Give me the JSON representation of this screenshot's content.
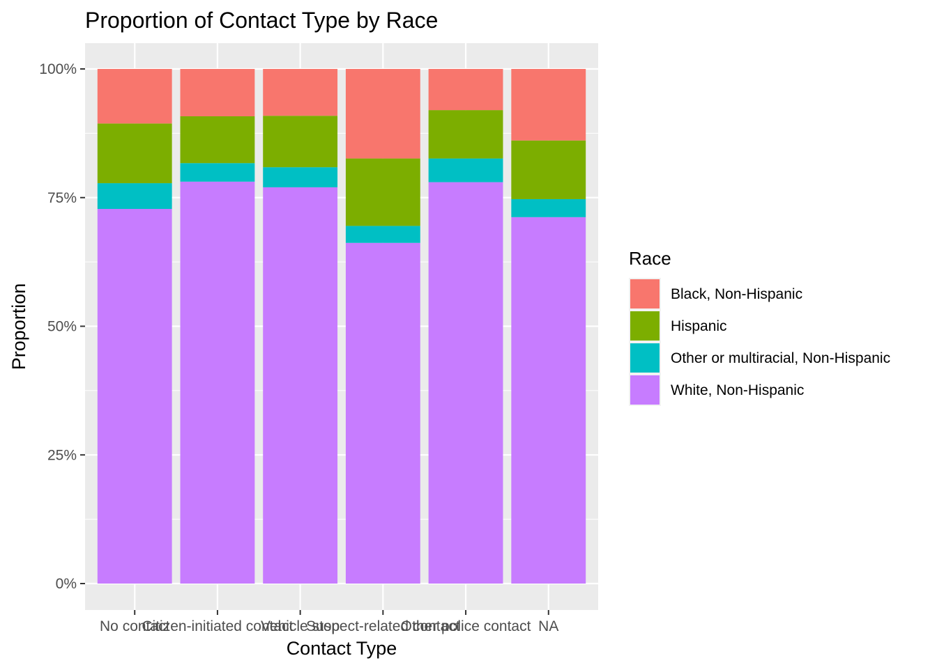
{
  "chart_data": {
    "type": "bar",
    "stacked": true,
    "normalized": true,
    "title": "Proportion of Contact Type by Race",
    "xlabel": "Contact Type",
    "ylabel": "Proportion",
    "ylim": [
      0,
      1
    ],
    "y_ticks": [
      0,
      0.25,
      0.5,
      0.75,
      1
    ],
    "y_tick_labels": [
      "0%",
      "25%",
      "50%",
      "75%",
      "100%"
    ],
    "grid": true,
    "categories": [
      "No contact",
      "Citizen-initiated contact",
      "Vehicle stop",
      "Suspect-related contact",
      "Other police contact",
      "NA"
    ],
    "series": [
      {
        "name": "White, Non-Hispanic",
        "color": "#C77CFF",
        "values": [
          0.728,
          0.781,
          0.77,
          0.662,
          0.78,
          0.712
        ]
      },
      {
        "name": "Other or multiracial, Non-Hispanic",
        "color": "#00BFC4",
        "values": [
          0.05,
          0.036,
          0.039,
          0.033,
          0.046,
          0.035
        ]
      },
      {
        "name": "Hispanic",
        "color": "#7CAE00",
        "values": [
          0.116,
          0.091,
          0.1,
          0.131,
          0.094,
          0.114
        ]
      },
      {
        "name": "Black, Non-Hispanic",
        "color": "#F8766D",
        "values": [
          0.106,
          0.092,
          0.091,
          0.174,
          0.08,
          0.139
        ]
      }
    ],
    "legend": {
      "title": "Race",
      "position": "right",
      "entries": [
        "Black, Non-Hispanic",
        "Hispanic",
        "Other or multiracial, Non-Hispanic",
        "White, Non-Hispanic"
      ]
    },
    "colors": {
      "panel_background": "#EBEBEB",
      "grid_major": "#FFFFFF",
      "text_axis": "#4D4D4D",
      "text_title": "#000000"
    }
  }
}
